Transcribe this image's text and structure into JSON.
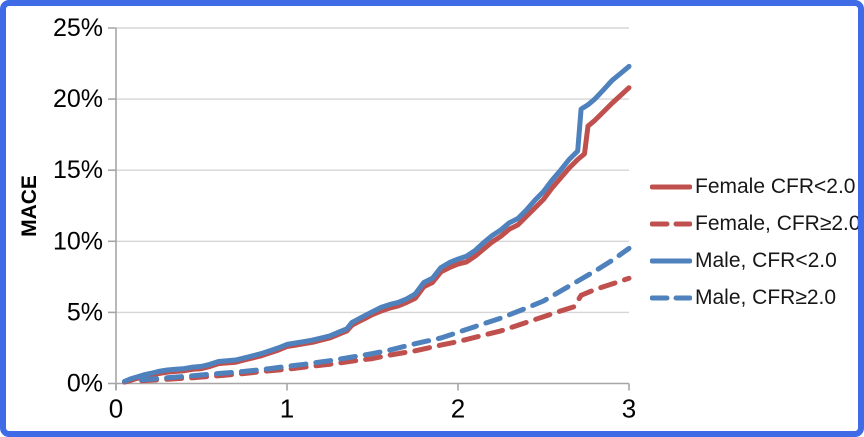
{
  "figure": {
    "background": "#FFFFFF",
    "frame_border_color": "#3F6BE6"
  },
  "chart_data": {
    "type": "line",
    "title": "",
    "xlabel": "",
    "ylabel": "MACE",
    "xlim": [
      0,
      3
    ],
    "ylim": [
      0,
      25
    ],
    "x_ticks": [
      0,
      1,
      2,
      3
    ],
    "x_tick_labels": [
      "0",
      "1",
      "2",
      "3"
    ],
    "y_ticks": [
      0,
      5,
      10,
      15,
      20,
      25
    ],
    "y_tick_labels": [
      "0%",
      "5%",
      "10%",
      "15%",
      "20%",
      "25%"
    ],
    "grid": "horizontal",
    "legend_position": "right",
    "colors": {
      "female": "#C0504D",
      "male": "#4F81BD",
      "gridline": "#D6D6D6",
      "axis": "#A6A6A6",
      "text": "#000000"
    },
    "series": [
      {
        "name": "Female CFR<2.0",
        "color": "#C0504D",
        "style": "solid",
        "points": [
          [
            0.05,
            0.1
          ],
          [
            0.08,
            0.2
          ],
          [
            0.12,
            0.35
          ],
          [
            0.16,
            0.45
          ],
          [
            0.2,
            0.55
          ],
          [
            0.25,
            0.7
          ],
          [
            0.3,
            0.8
          ],
          [
            0.35,
            0.85
          ],
          [
            0.4,
            0.9
          ],
          [
            0.45,
            1.0
          ],
          [
            0.5,
            1.05
          ],
          [
            0.55,
            1.2
          ],
          [
            0.6,
            1.4
          ],
          [
            0.65,
            1.45
          ],
          [
            0.7,
            1.5
          ],
          [
            0.75,
            1.65
          ],
          [
            0.8,
            1.8
          ],
          [
            0.85,
            1.95
          ],
          [
            0.9,
            2.15
          ],
          [
            0.95,
            2.35
          ],
          [
            1.0,
            2.6
          ],
          [
            1.05,
            2.7
          ],
          [
            1.1,
            2.8
          ],
          [
            1.15,
            2.9
          ],
          [
            1.2,
            3.05
          ],
          [
            1.25,
            3.2
          ],
          [
            1.3,
            3.45
          ],
          [
            1.35,
            3.7
          ],
          [
            1.38,
            4.1
          ],
          [
            1.42,
            4.35
          ],
          [
            1.46,
            4.6
          ],
          [
            1.5,
            4.85
          ],
          [
            1.55,
            5.1
          ],
          [
            1.6,
            5.3
          ],
          [
            1.65,
            5.45
          ],
          [
            1.7,
            5.7
          ],
          [
            1.75,
            6.0
          ],
          [
            1.8,
            6.8
          ],
          [
            1.85,
            7.1
          ],
          [
            1.9,
            7.85
          ],
          [
            1.95,
            8.15
          ],
          [
            2.0,
            8.4
          ],
          [
            2.05,
            8.55
          ],
          [
            2.1,
            8.95
          ],
          [
            2.15,
            9.45
          ],
          [
            2.2,
            9.95
          ],
          [
            2.25,
            10.35
          ],
          [
            2.3,
            10.85
          ],
          [
            2.35,
            11.15
          ],
          [
            2.4,
            11.75
          ],
          [
            2.45,
            12.35
          ],
          [
            2.5,
            12.95
          ],
          [
            2.55,
            13.75
          ],
          [
            2.6,
            14.45
          ],
          [
            2.65,
            15.15
          ],
          [
            2.7,
            15.75
          ],
          [
            2.74,
            16.15
          ],
          [
            2.76,
            18.1
          ],
          [
            2.8,
            18.5
          ],
          [
            2.85,
            19.1
          ],
          [
            2.9,
            19.7
          ],
          [
            2.95,
            20.25
          ],
          [
            3.0,
            20.8
          ]
        ]
      },
      {
        "name": "Female, CFR≥2.0",
        "color": "#C0504D",
        "style": "dashed",
        "points": [
          [
            0.15,
            0.2
          ],
          [
            0.3,
            0.3
          ],
          [
            0.45,
            0.4
          ],
          [
            0.6,
            0.55
          ],
          [
            0.75,
            0.7
          ],
          [
            0.9,
            0.9
          ],
          [
            1.0,
            1.0
          ],
          [
            1.1,
            1.15
          ],
          [
            1.25,
            1.35
          ],
          [
            1.4,
            1.6
          ],
          [
            1.5,
            1.75
          ],
          [
            1.6,
            2.0
          ],
          [
            1.75,
            2.3
          ],
          [
            1.9,
            2.7
          ],
          [
            2.0,
            2.95
          ],
          [
            2.1,
            3.25
          ],
          [
            2.25,
            3.7
          ],
          [
            2.4,
            4.3
          ],
          [
            2.5,
            4.7
          ],
          [
            2.6,
            5.1
          ],
          [
            2.68,
            5.4
          ],
          [
            2.72,
            6.2
          ],
          [
            2.8,
            6.6
          ],
          [
            2.9,
            7.0
          ],
          [
            3.0,
            7.4
          ]
        ]
      },
      {
        "name": "Male, CFR<2.0",
        "color": "#4F81BD",
        "style": "solid",
        "points": [
          [
            0.05,
            0.15
          ],
          [
            0.08,
            0.3
          ],
          [
            0.12,
            0.45
          ],
          [
            0.16,
            0.6
          ],
          [
            0.2,
            0.7
          ],
          [
            0.25,
            0.85
          ],
          [
            0.3,
            0.95
          ],
          [
            0.35,
            1.0
          ],
          [
            0.4,
            1.05
          ],
          [
            0.45,
            1.15
          ],
          [
            0.5,
            1.2
          ],
          [
            0.55,
            1.35
          ],
          [
            0.6,
            1.55
          ],
          [
            0.65,
            1.6
          ],
          [
            0.7,
            1.65
          ],
          [
            0.75,
            1.8
          ],
          [
            0.8,
            1.95
          ],
          [
            0.85,
            2.1
          ],
          [
            0.9,
            2.3
          ],
          [
            0.95,
            2.5
          ],
          [
            1.0,
            2.75
          ],
          [
            1.05,
            2.85
          ],
          [
            1.1,
            2.95
          ],
          [
            1.15,
            3.05
          ],
          [
            1.2,
            3.2
          ],
          [
            1.25,
            3.35
          ],
          [
            1.3,
            3.6
          ],
          [
            1.35,
            3.85
          ],
          [
            1.38,
            4.3
          ],
          [
            1.42,
            4.55
          ],
          [
            1.46,
            4.8
          ],
          [
            1.5,
            5.05
          ],
          [
            1.55,
            5.35
          ],
          [
            1.6,
            5.55
          ],
          [
            1.65,
            5.7
          ],
          [
            1.7,
            5.95
          ],
          [
            1.75,
            6.3
          ],
          [
            1.8,
            7.1
          ],
          [
            1.85,
            7.4
          ],
          [
            1.9,
            8.15
          ],
          [
            1.95,
            8.5
          ],
          [
            2.0,
            8.75
          ],
          [
            2.05,
            8.95
          ],
          [
            2.1,
            9.35
          ],
          [
            2.15,
            9.9
          ],
          [
            2.2,
            10.4
          ],
          [
            2.25,
            10.8
          ],
          [
            2.3,
            11.3
          ],
          [
            2.35,
            11.6
          ],
          [
            2.4,
            12.2
          ],
          [
            2.45,
            12.9
          ],
          [
            2.5,
            13.5
          ],
          [
            2.55,
            14.3
          ],
          [
            2.6,
            15.0
          ],
          [
            2.65,
            15.75
          ],
          [
            2.7,
            16.35
          ],
          [
            2.72,
            19.3
          ],
          [
            2.76,
            19.6
          ],
          [
            2.8,
            20.0
          ],
          [
            2.85,
            20.65
          ],
          [
            2.9,
            21.3
          ],
          [
            2.95,
            21.8
          ],
          [
            3.0,
            22.3
          ]
        ]
      },
      {
        "name": "Male, CFR≥2.0",
        "color": "#4F81BD",
        "style": "dashed",
        "points": [
          [
            0.15,
            0.25
          ],
          [
            0.3,
            0.4
          ],
          [
            0.45,
            0.55
          ],
          [
            0.6,
            0.7
          ],
          [
            0.75,
            0.85
          ],
          [
            0.9,
            1.05
          ],
          [
            1.0,
            1.2
          ],
          [
            1.1,
            1.35
          ],
          [
            1.25,
            1.6
          ],
          [
            1.4,
            1.9
          ],
          [
            1.5,
            2.1
          ],
          [
            1.6,
            2.35
          ],
          [
            1.75,
            2.8
          ],
          [
            1.9,
            3.2
          ],
          [
            2.0,
            3.6
          ],
          [
            2.1,
            4.0
          ],
          [
            2.25,
            4.6
          ],
          [
            2.4,
            5.3
          ],
          [
            2.5,
            5.8
          ],
          [
            2.6,
            6.5
          ],
          [
            2.7,
            7.2
          ],
          [
            2.8,
            7.9
          ],
          [
            2.9,
            8.65
          ],
          [
            3.0,
            9.5
          ]
        ]
      }
    ]
  }
}
